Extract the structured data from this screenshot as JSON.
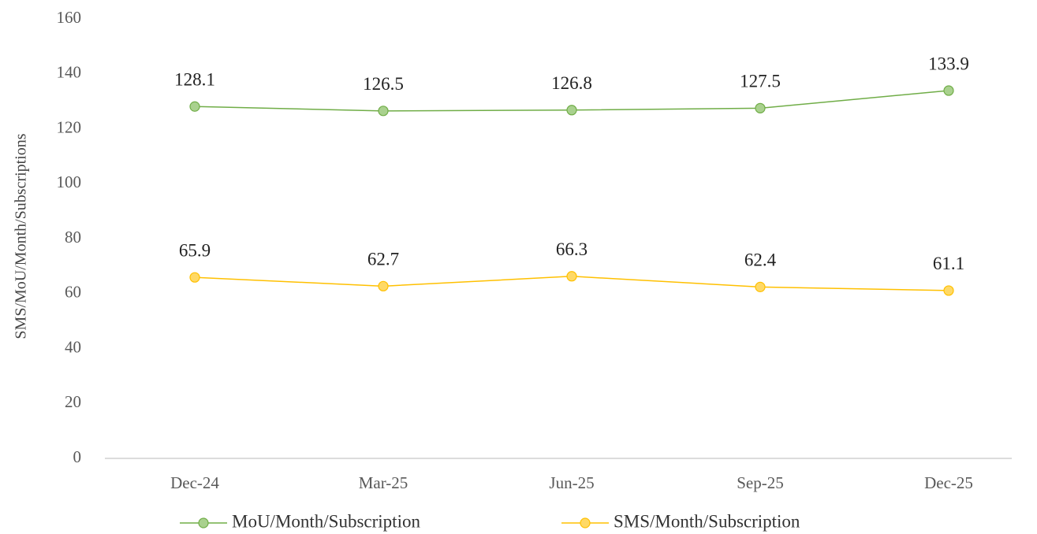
{
  "chart_data": {
    "type": "line",
    "y_label": "SMS/MoU/Month/Subscriptions",
    "categories": [
      "Dec-24",
      "Mar-25",
      "Jun-25",
      "Sep-25",
      "Dec-25"
    ],
    "series": [
      {
        "name": "MoU/Month/Subscription",
        "color": "#70ad47",
        "values": [
          128.1,
          126.5,
          126.8,
          127.5,
          133.9
        ]
      },
      {
        "name": "SMS/Month/Subscription",
        "color": "#ffc000",
        "values": [
          65.9,
          62.7,
          66.3,
          62.4,
          61.1
        ]
      }
    ],
    "ylim": [
      0,
      160
    ],
    "yticks": [
      0,
      20,
      40,
      60,
      80,
      100,
      120,
      140,
      160
    ],
    "grid": false,
    "legend": "bottom"
  }
}
